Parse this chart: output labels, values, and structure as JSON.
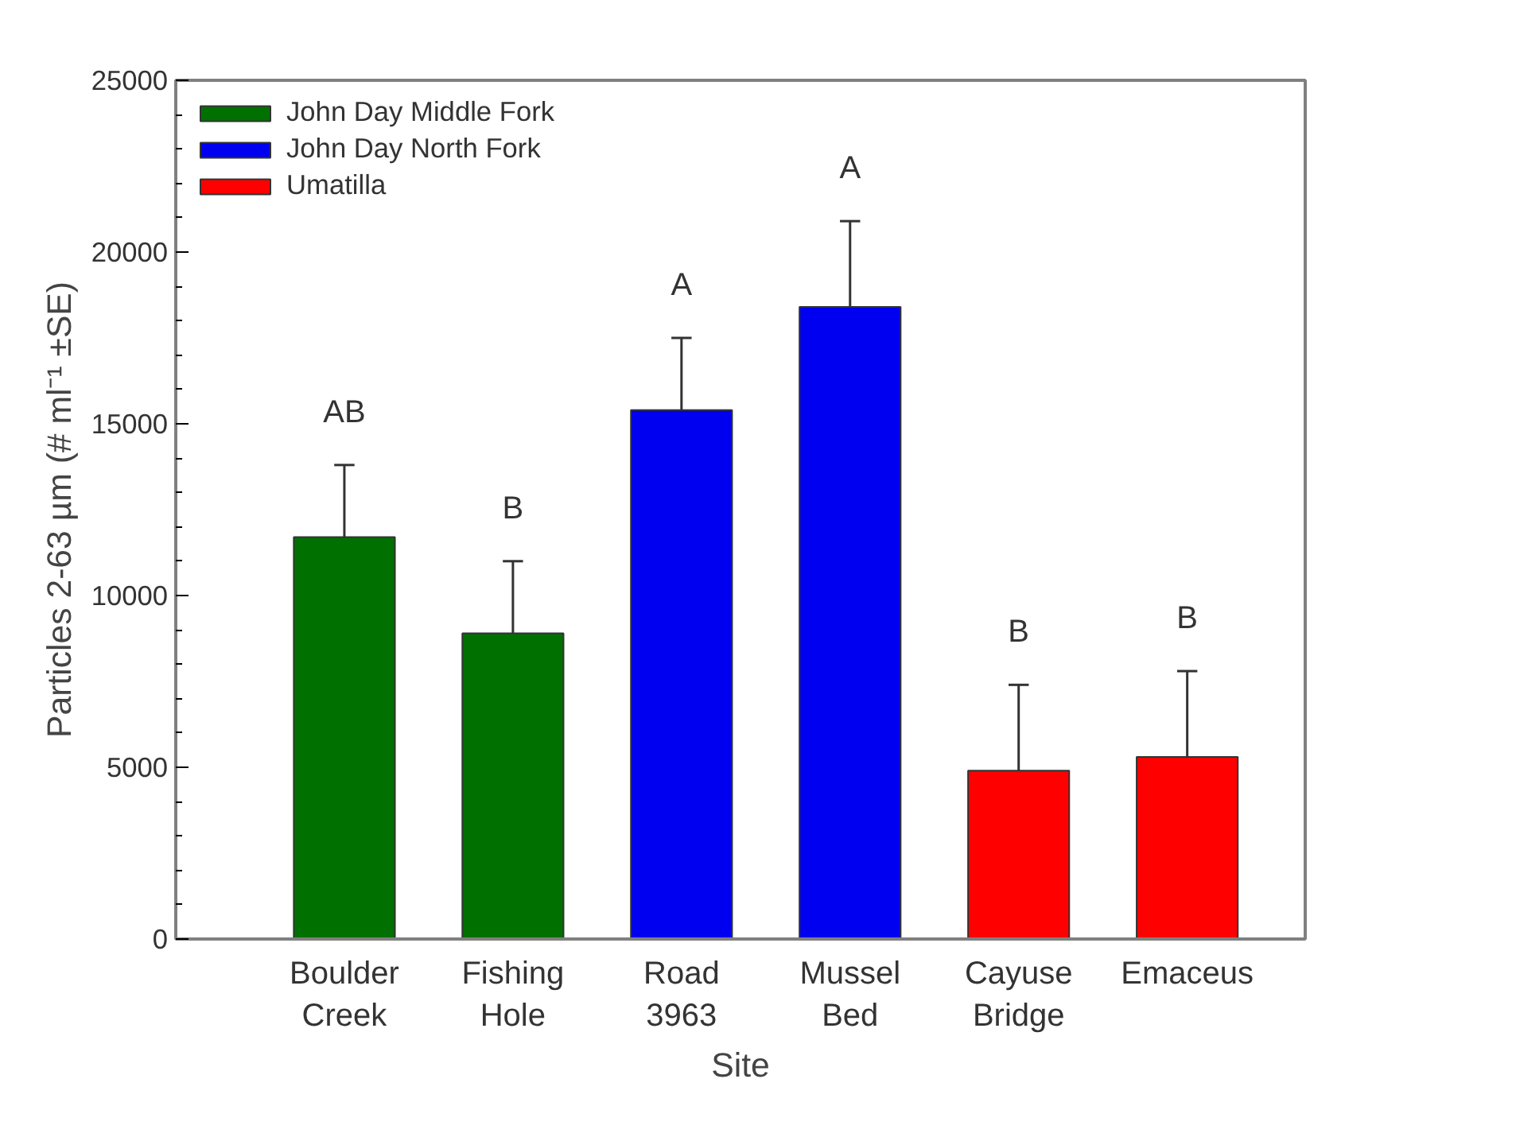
{
  "chart_data": {
    "type": "bar",
    "xlabel": "Site",
    "ylabel": "Particles 2-63 µm (# ml⁻¹ ±SE)",
    "categories": [
      "Boulder\nCreek",
      "Fishing\nHole",
      "Road\n3963",
      "Mussel\nBed",
      "Cayuse\nBridge",
      "Emaceus"
    ],
    "series": [
      {
        "name": "John Day Middle Fork",
        "color": "#007000",
        "values": [
          11700,
          8900,
          null,
          null,
          null,
          null
        ],
        "errors": [
          [
            11700,
            13800
          ],
          [
            8900,
            11000
          ],
          null,
          null,
          null,
          null
        ]
      },
      {
        "name": "John Day North Fork",
        "color": "#0000f0",
        "values": [
          null,
          null,
          15400,
          18400,
          null,
          null
        ],
        "errors": [
          null,
          null,
          [
            15400,
            17500
          ],
          [
            18400,
            20900
          ],
          null,
          null
        ]
      },
      {
        "name": "Umatilla",
        "color": "#ff0000",
        "values": [
          null,
          null,
          null,
          null,
          4900,
          5300
        ],
        "errors": [
          null,
          null,
          null,
          null,
          [
            4900,
            7400
          ],
          [
            5300,
            7800
          ]
        ]
      }
    ],
    "ylim": [
      0,
      25000
    ],
    "yticks": [
      0,
      5000,
      10000,
      15000,
      20000,
      25000
    ],
    "grid": false,
    "legend": "top left",
    "annotations": [
      "AB",
      "B",
      "A",
      "A",
      "B",
      "B"
    ]
  }
}
